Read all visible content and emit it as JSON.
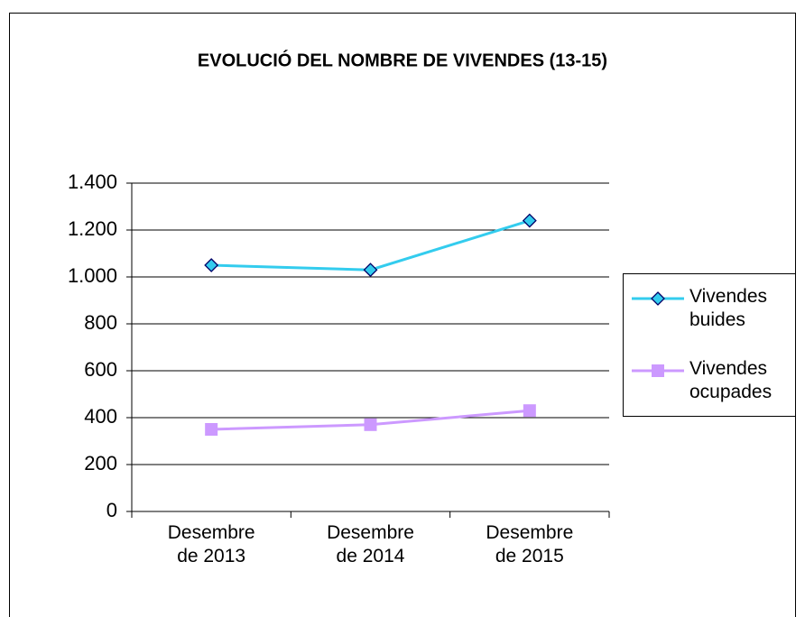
{
  "chart_data": {
    "type": "line",
    "title": "EVOLUCIÓ DEL NOMBRE DE VIVENDES (13-15)",
    "categories": [
      "Desembre de 2013",
      "Desembre de 2014",
      "Desembre de 2015"
    ],
    "series": [
      {
        "name": "Vivendes buides",
        "color": "#33ccee",
        "marker": "diamond",
        "values": [
          1050,
          1030,
          1240
        ]
      },
      {
        "name": "Vivendes ocupades",
        "color": "#cc99ff",
        "marker": "square",
        "values": [
          350,
          370,
          430
        ]
      }
    ],
    "ylim": [
      0,
      1400
    ],
    "yticks": [
      0,
      200,
      400,
      600,
      800,
      {
        "value": 1000,
        "label": "1.000"
      },
      {
        "value": 1200,
        "label": "1.200"
      },
      {
        "value": 1400,
        "label": "1.400"
      }
    ],
    "grid": true,
    "legend": "right"
  }
}
